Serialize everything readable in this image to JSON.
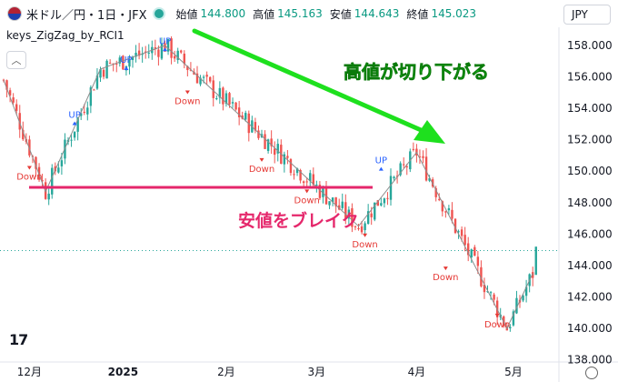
{
  "header": {
    "symbol": "米ドル／円・1日・JFX",
    "open_label": "始値",
    "open_value": "144.800",
    "high_label": "高値",
    "high_value": "145.163",
    "low_label": "安値",
    "low_value": "144.643",
    "close_label": "終値",
    "close_value": "145.023"
  },
  "indicator_name": "keys_ZigZag_by_RCI1",
  "currency": "JPY",
  "annotations": {
    "highs_lower": "高値が切り下がる",
    "low_break": "安値をブレイク"
  },
  "colors": {
    "up": "#26a69a",
    "down": "#ef5350",
    "zigzag": "#8c8c8c",
    "arrow": "#1ee01e",
    "break_line": "#e5276b",
    "up_label": "#2962ff",
    "down_label": "#e53935"
  },
  "chart_data": {
    "type": "candlestick",
    "ylim": [
      138,
      159.5
    ],
    "yticks": [
      "158.000",
      "156.000",
      "154.000",
      "152.000",
      "150.000",
      "148.000",
      "146.000",
      "144.000",
      "142.000",
      "140.000",
      "138.000"
    ],
    "ytick_values": [
      158,
      156,
      154,
      152,
      150,
      148,
      146,
      144,
      142,
      140,
      138
    ],
    "xticks": [
      {
        "label": "12月",
        "day": 8
      },
      {
        "label": "2025",
        "day": 37
      },
      {
        "label": "2月",
        "day": 69
      },
      {
        "label": "3月",
        "day": 97
      },
      {
        "label": "4月",
        "day": 128
      },
      {
        "label": "5月",
        "day": 158
      }
    ],
    "dashed_level": 144.95,
    "zigzag": [
      [
        0,
        155.8
      ],
      [
        13,
        148.7
      ],
      [
        30,
        156.5
      ],
      [
        50,
        158.0
      ],
      [
        110,
        146.5
      ],
      [
        128,
        151.2
      ],
      [
        156,
        140.0
      ],
      [
        164,
        143.5
      ]
    ],
    "up_markers": [
      [
        22,
        153.4
      ],
      [
        38,
        156.9
      ],
      [
        50,
        158.1
      ],
      [
        117,
        150.5
      ]
    ],
    "down_markers": [
      [
        8,
        150.1
      ],
      [
        57,
        154.9
      ],
      [
        80,
        150.6
      ],
      [
        94,
        148.6
      ],
      [
        112,
        145.8
      ],
      [
        137,
        143.7
      ],
      [
        153,
        140.7
      ]
    ],
    "marker_text": {
      "up": "UP",
      "down": "Down"
    }
  }
}
